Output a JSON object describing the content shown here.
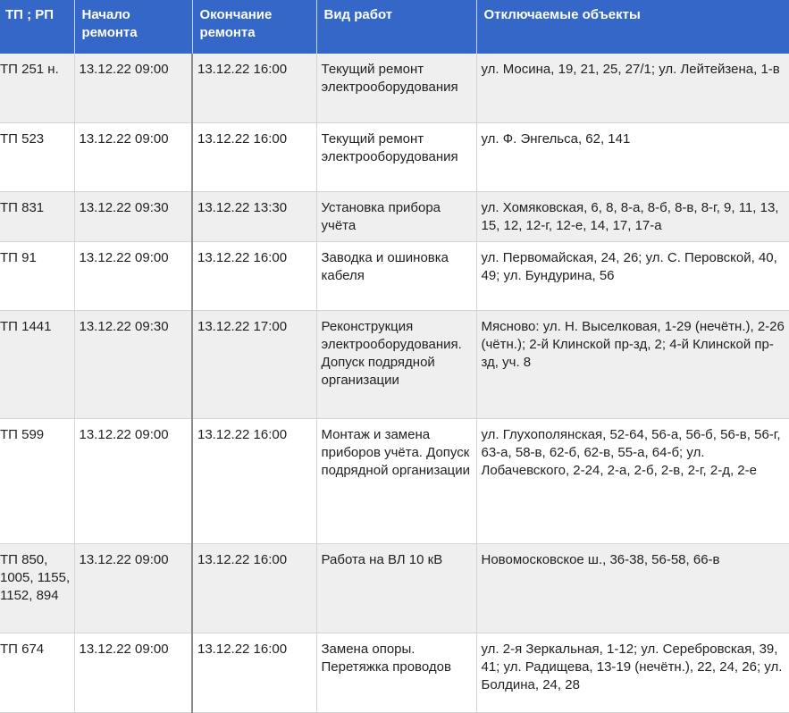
{
  "header_color": "#3467c7",
  "columns": [
    "ТП ; РП",
    "Начало ремонта",
    "Окончание ремонта",
    "Вид работ",
    "Отключаемые объекты"
  ],
  "rows": [
    {
      "tp": "ТП 251 н.",
      "start": "13.12.22 09:00",
      "end": "13.12.22 16:00",
      "work": "Текущий ремонт электрооборудования",
      "objects": "ул. Мосина, 19, 21, 25, 27/1; ул. Лейтейзена, 1-в"
    },
    {
      "tp": "ТП 523",
      "start": "13.12.22 09:00",
      "end": "13.12.22 16:00",
      "work": "Текущий ремонт электрооборудования",
      "objects": "ул. Ф. Энгельса, 62, 141"
    },
    {
      "tp": "ТП 831",
      "start": "13.12.22 09:30",
      "end": "13.12.22 13:30",
      "work": "Установка прибора учёта",
      "objects": "ул. Хомяковская, 6, 8, 8-а, 8-б, 8-в, 8-г, 9, 11, 13, 15, 12, 12-г, 12-е, 14, 17, 17-а"
    },
    {
      "tp": "ТП 91",
      "start": "13.12.22 09:00",
      "end": "13.12.22 16:00",
      "work": "Заводка и ошиновка кабеля",
      "objects": "ул. Первомайская, 24, 26; ул. С. Перовской, 40, 49; ул. Бундурина, 56"
    },
    {
      "tp": "ТП 1441",
      "start": "13.12.22 09:30",
      "end": "13.12.22 17:00",
      "work": "Реконструкция электрооборудования. Допуск подрядной организации",
      "objects": "Мясново: ул. Н. Выселковая, 1-29 (нечётн.), 2-26 (чётн.); 2-й Клинской пр-зд, 2; 4-й Клинской пр-зд, уч. 8"
    },
    {
      "tp": "ТП 599",
      "start": "13.12.22 09:00",
      "end": "13.12.22 16:00",
      "work": "Монтаж и замена приборов учёта. Допуск подрядной организации",
      "objects": "ул. Глухополянская, 52-64, 56-а, 56-б, 56-в, 56-г, 63-а, 58-в, 62-б, 62-в, 55-а, 64-б; ул. Лобачевского, 2-24, 2-а, 2-б, 2-в, 2-г, 2-д, 2-е"
    },
    {
      "tp": "ТП 850, 1005, 1155, 1152, 894",
      "start": "13.12.22 09:00",
      "end": "13.12.22 16:00",
      "work": "Работа на ВЛ 10 кВ",
      "objects": "Новомосковское ш., 36-38, 56-58, 66-в"
    },
    {
      "tp": "ТП 674",
      "start": "13.12.22 09:00",
      "end": "13.12.22 16:00",
      "work": "Замена опоры. Перетяжка проводов",
      "objects": "ул. 2-я Зеркальная, 1-12; ул. Серебровская, 39, 41; ул. Радищева, 13-19 (нечётн.), 22, 24, 26; ул. Болдина, 24, 28"
    }
  ]
}
